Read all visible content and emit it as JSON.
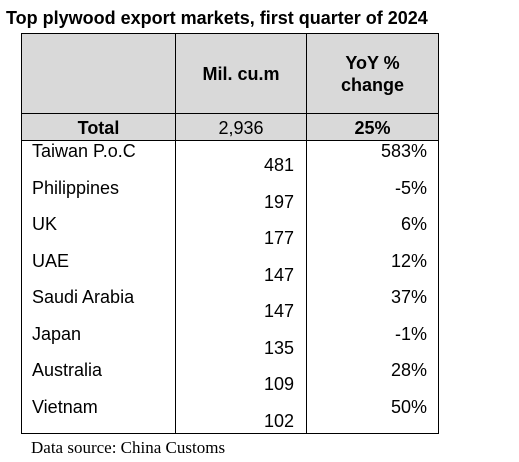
{
  "title": "Top plywood export markets, first quarter of 2024",
  "table": {
    "headers": [
      "",
      "Mil. cu.m",
      "YoY % change"
    ],
    "total": {
      "label": "Total",
      "value": "2,936",
      "change": "25%"
    },
    "rows": [
      {
        "country": "Taiwan P.o.C",
        "value": "481",
        "change": "583%"
      },
      {
        "country": "Philippines",
        "value": "197",
        "change": "-5%"
      },
      {
        "country": "UK",
        "value": "177",
        "change": "6%"
      },
      {
        "country": "UAE",
        "value": "147",
        "change": "12%"
      },
      {
        "country": "Saudi Arabia",
        "value": "147",
        "change": "37%"
      },
      {
        "country": "Japan",
        "value": "135",
        "change": "-1%"
      },
      {
        "country": "Australia",
        "value": "109",
        "change": "28%"
      },
      {
        "country": "Vietnam",
        "value": "102",
        "change": "50%"
      }
    ]
  },
  "source": "Data source: China Customs"
}
